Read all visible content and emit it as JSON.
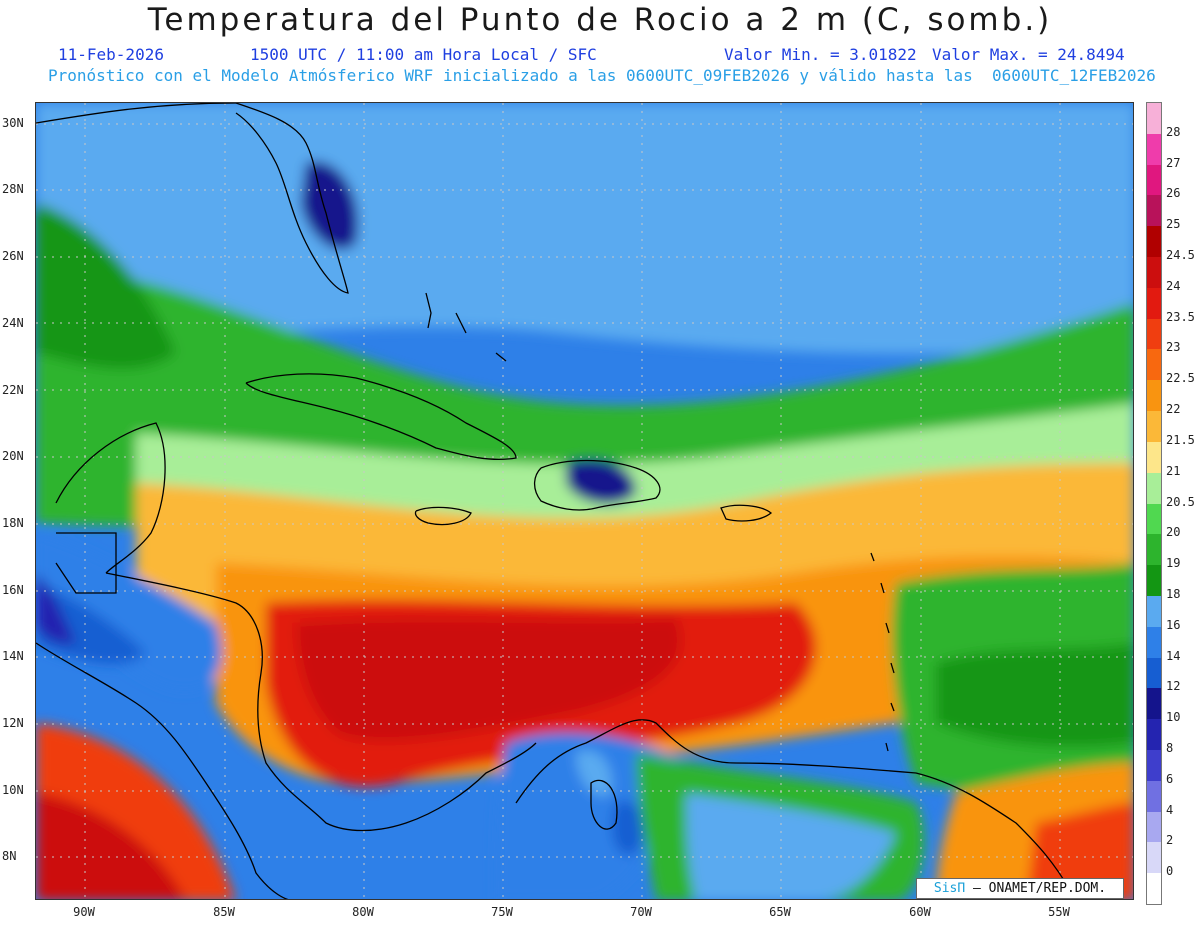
{
  "header": {
    "title": "Temperatura del Punto de Rocio a 2 m (C, somb.)",
    "date": "11-Feb-2026",
    "time": "1500 UTC / 11:00 am Hora Local / SFC",
    "min": "Valor Min. = 3.01822",
    "max": "Valor Max. = 24.8494",
    "subtitle": "Pronóstico con el Modelo Atmósferico WRF inicializado a las 0600UTC_09FEB2026 y válido hasta las  0600UTC_12FEB2026"
  },
  "axes": {
    "lat_labels": [
      "30N",
      "28N",
      "26N",
      "24N",
      "22N",
      "20N",
      "18N",
      "16N",
      "14N",
      "12N",
      "10N",
      "8N"
    ],
    "lon_labels": [
      "90W",
      "85W",
      "80W",
      "75W",
      "70W",
      "65W",
      "60W",
      "55W"
    ]
  },
  "legend": {
    "labels": [
      "28",
      "27",
      "26",
      "25",
      "24.5",
      "24",
      "23.5",
      "23",
      "22.5",
      "22",
      "21.5",
      "21",
      "20.5",
      "20",
      "19",
      "18",
      "16",
      "14",
      "12",
      "10",
      "8",
      "6",
      "4",
      "2",
      "0"
    ],
    "colors": [
      "#f7b0d8",
      "#ef3cab",
      "#e0177f",
      "#b8125a",
      "#b00000",
      "#cc0e0e",
      "#e21a10",
      "#f03e10",
      "#f8680f",
      "#f99410",
      "#fbb838",
      "#fde68a",
      "#a8ee98",
      "#50d850",
      "#2db42d",
      "#139613",
      "#5aaaf0",
      "#2e80e8",
      "#165ed2",
      "#14148c",
      "#2424b0",
      "#3e3ecc",
      "#7070e2",
      "#a8a8f0",
      "#d8d8f8",
      "#ffffff"
    ]
  },
  "credit": {
    "brand": "SisΠ",
    "org": " – ONAMET/REP.DOM."
  }
}
